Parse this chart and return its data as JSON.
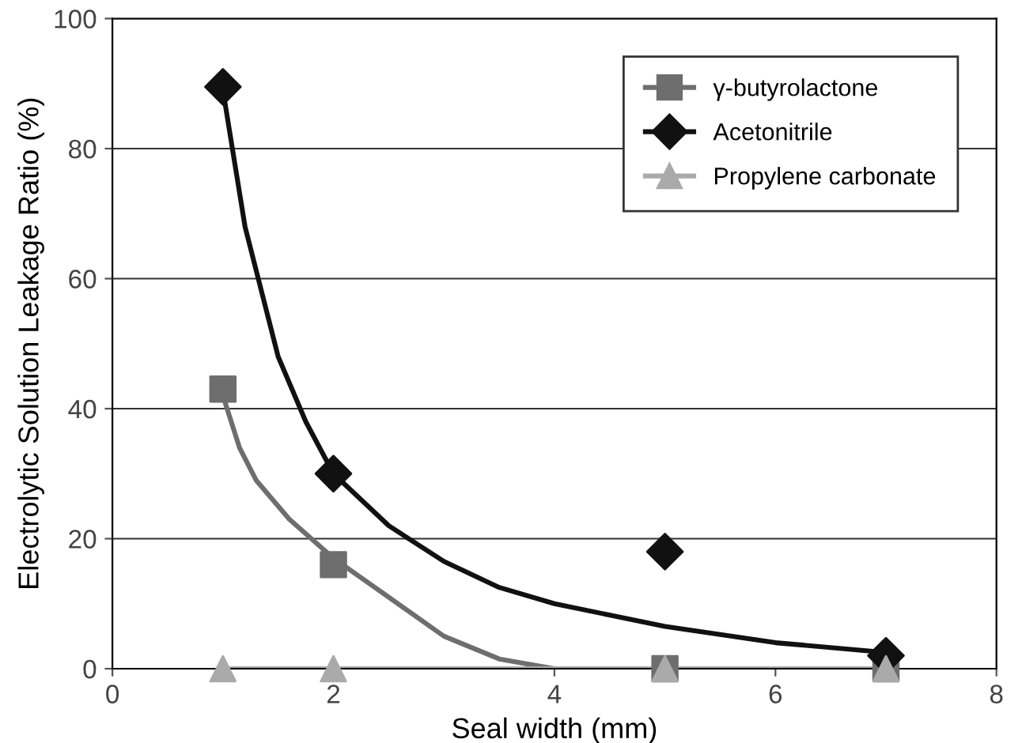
{
  "chart_data": {
    "type": "scatter",
    "xlabel": "Seal width (mm)",
    "ylabel": "Electrolytic Solution Leakage Ratio (%)",
    "xlim": [
      0,
      8
    ],
    "xticks": [
      0,
      2,
      4,
      6,
      8
    ],
    "ylim": [
      0,
      100
    ],
    "yticks": [
      0,
      20,
      40,
      60,
      80,
      100
    ],
    "grid": "y",
    "legend": "top right",
    "series": [
      {
        "type": "line",
        "color": "#6e6e6e",
        "x": [
          1,
          1.15,
          1.3,
          1.6,
          2,
          2.5,
          3,
          3.5,
          4,
          5,
          6,
          7
        ],
        "values": [
          42,
          34,
          29,
          23,
          17,
          11,
          5,
          1.5,
          0,
          0,
          0,
          0
        ]
      },
      {
        "type": "line",
        "color": "#111111",
        "x": [
          1,
          1.2,
          1.5,
          1.75,
          2,
          2.5,
          3,
          3.5,
          4,
          5,
          6,
          7
        ],
        "values": [
          89,
          68,
          48,
          38,
          30,
          22,
          16.5,
          12.5,
          10,
          6.5,
          4,
          2.5
        ]
      },
      {
        "type": "line",
        "color": "#aaaaaa",
        "x": [
          1,
          7
        ],
        "values": [
          0,
          0
        ]
      },
      {
        "name": "γ-butyrolactone",
        "color": "#6e6e6e",
        "marker": "square",
        "x": [
          1,
          2,
          5,
          7
        ],
        "values": [
          43,
          16,
          0,
          0
        ]
      },
      {
        "name": "Acetonitrile",
        "color": "#111111",
        "marker": "diamond",
        "x": [
          1,
          2,
          5,
          7
        ],
        "values": [
          89.5,
          30,
          18,
          2
        ]
      },
      {
        "name": "Propylene carbonate",
        "color": "#aaaaaa",
        "marker": "triangle",
        "x": [
          1,
          2,
          5,
          7
        ],
        "values": [
          0,
          0,
          0,
          0
        ]
      }
    ]
  }
}
